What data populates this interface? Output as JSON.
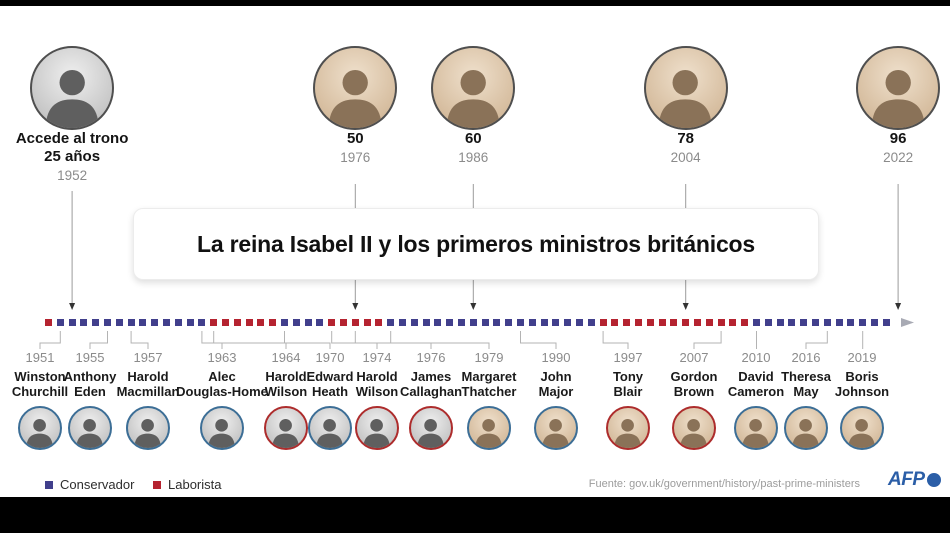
{
  "header": {
    "title": "La reina Isabel II y los primeros ministros británicos"
  },
  "colors": {
    "conservative": "#413f8c",
    "labour": "#b52330",
    "ring_conservative": "#3c6e96",
    "ring_labour": "#ad2c2c",
    "queen_line": "#9b9b9b",
    "pm_line": "#b3b3b3",
    "arrow_dark": "#333333",
    "arrow_end": "#a8aab4",
    "afp_blue": "#2b5ea7"
  },
  "queen_milestones": [
    {
      "label_lines": [
        "Accede al trono",
        "25 años"
      ],
      "year": "1952",
      "photo_style": "bw"
    },
    {
      "label_lines": [
        "50"
      ],
      "year": "1976",
      "photo_style": "color"
    },
    {
      "label_lines": [
        "60"
      ],
      "year": "1986",
      "photo_style": "color"
    },
    {
      "label_lines": [
        "78"
      ],
      "year": "2004",
      "photo_style": "color"
    },
    {
      "label_lines": [
        "96"
      ],
      "year": "2022",
      "photo_style": "color"
    }
  ],
  "timeline": {
    "start_year": 1950,
    "end_year": 2021,
    "runs": [
      {
        "party": "labour",
        "from": 1950,
        "to": 1950
      },
      {
        "party": "conservative",
        "from": 1951,
        "to": 1963
      },
      {
        "party": "labour",
        "from": 1964,
        "to": 1969
      },
      {
        "party": "conservative",
        "from": 1970,
        "to": 1973
      },
      {
        "party": "labour",
        "from": 1974,
        "to": 1978
      },
      {
        "party": "conservative",
        "from": 1979,
        "to": 1996
      },
      {
        "party": "labour",
        "from": 1997,
        "to": 2009
      },
      {
        "party": "conservative",
        "from": 2010,
        "to": 2021
      }
    ]
  },
  "prime_ministers": [
    {
      "year": "1951",
      "name_lines": [
        "Winston",
        "Churchill"
      ],
      "party": "conservative",
      "photo_style": "bw"
    },
    {
      "year": "1955",
      "name_lines": [
        "Anthony",
        "Eden"
      ],
      "party": "conservative",
      "photo_style": "bw"
    },
    {
      "year": "1957",
      "name_lines": [
        "Harold",
        "Macmillan"
      ],
      "party": "conservative",
      "photo_style": "bw"
    },
    {
      "year": "1963",
      "name_lines": [
        "Alec",
        "Douglas-Home"
      ],
      "party": "conservative",
      "photo_style": "bw"
    },
    {
      "year": "1964",
      "name_lines": [
        "Harold",
        "Wilson"
      ],
      "party": "labour",
      "photo_style": "bw"
    },
    {
      "year": "1970",
      "name_lines": [
        "Edward",
        "Heath"
      ],
      "party": "conservative",
      "photo_style": "bw"
    },
    {
      "year": "1974",
      "name_lines": [
        "Harold",
        "Wilson"
      ],
      "party": "labour",
      "photo_style": "bw"
    },
    {
      "year": "1976",
      "name_lines": [
        "James",
        "Callaghan"
      ],
      "party": "labour",
      "photo_style": "bw"
    },
    {
      "year": "1979",
      "name_lines": [
        "Margaret",
        "Thatcher"
      ],
      "party": "conservative",
      "photo_style": "color"
    },
    {
      "year": "1990",
      "name_lines": [
        "John",
        "Major"
      ],
      "party": "conservative",
      "photo_style": "color"
    },
    {
      "year": "1997",
      "name_lines": [
        "Tony",
        "Blair"
      ],
      "party": "labour",
      "photo_style": "color"
    },
    {
      "year": "2007",
      "name_lines": [
        "Gordon",
        "Brown"
      ],
      "party": "labour",
      "photo_style": "color"
    },
    {
      "year": "2010",
      "name_lines": [
        "David",
        "Cameron"
      ],
      "party": "conservative",
      "photo_style": "color"
    },
    {
      "year": "2016",
      "name_lines": [
        "Theresa",
        "May"
      ],
      "party": "conservative",
      "photo_style": "color"
    },
    {
      "year": "2019",
      "name_lines": [
        "Boris",
        "Johnson"
      ],
      "party": "conservative",
      "photo_style": "color"
    }
  ],
  "legend": [
    {
      "label": "Conservador",
      "party": "conservative"
    },
    {
      "label": "Laborista",
      "party": "labour"
    }
  ],
  "footer": {
    "source": "Fuente: gov.uk/government/history/past-prime-ministers",
    "logo": "AFP"
  }
}
